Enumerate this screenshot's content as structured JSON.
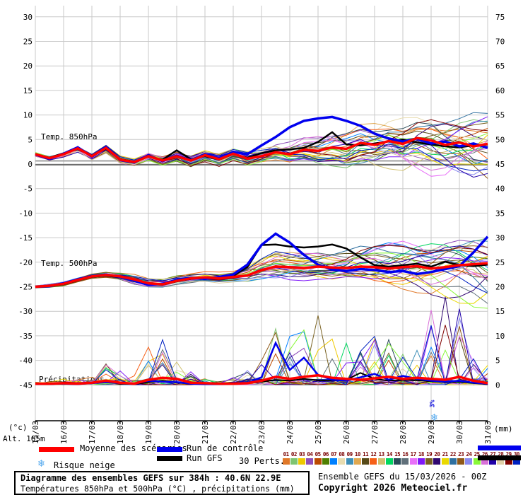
{
  "axes": {
    "left_unit": "(°c)",
    "right_unit": "(mm)",
    "alt_label": "Alt. 165m",
    "left_ticks": [
      30,
      25,
      20,
      15,
      10,
      5,
      0,
      -5,
      -10,
      -15,
      -20,
      -25,
      -30,
      -35,
      -40,
      -45
    ],
    "right_ticks": [
      75,
      70,
      65,
      60,
      55,
      50,
      45,
      40,
      35,
      30,
      25,
      20,
      15,
      10,
      5,
      0
    ],
    "date_labels": [
      "15/03",
      "16/03",
      "17/03",
      "18/03",
      "19/03",
      "20/03",
      "21/03",
      "22/03",
      "23/03",
      "24/03",
      "25/03",
      "26/03",
      "27/03",
      "28/03",
      "29/03",
      "30/03",
      "31/03"
    ]
  },
  "panels": {
    "t850_label": "Temp. 850hPa",
    "t500_label": "Temp. 500hPa",
    "precip_label": "Précipitations"
  },
  "legend": {
    "mean_label": "Moyenne des scénarios",
    "control_label": "Run de contrôle",
    "gfs_label": "Run GFS",
    "perts_label": "30 Perts.",
    "snow_label": "Risque neige",
    "snowflake_icon": "❄",
    "mean_color": "#FF0000",
    "control_color": "#0000EE",
    "gfs_color": "#000000",
    "pert_numbers": [
      "01",
      "02",
      "03",
      "04",
      "05",
      "06",
      "07",
      "08",
      "09",
      "10",
      "11",
      "12",
      "13",
      "14",
      "15",
      "16",
      "17",
      "18",
      "19",
      "20",
      "21",
      "22",
      "23",
      "24",
      "25",
      "26",
      "27",
      "28",
      "29",
      "30"
    ],
    "pert_colors": [
      "#E07828",
      "#7EC471",
      "#EFC900",
      "#8F4FB8",
      "#BB4A00",
      "#4F7F00",
      "#0080FF",
      "#E8DCB0",
      "#3E8FB8",
      "#E0A850",
      "#574A18",
      "#F66018",
      "#CFC070",
      "#00D660",
      "#2A4A58",
      "#60707A",
      "#E870F8",
      "#7F18F8",
      "#786020",
      "#300870",
      "#EAD900",
      "#2F70A0",
      "#8F5818",
      "#8A8AF0",
      "#88F838",
      "#D870D8",
      "#2000A8",
      "#E0D0A8",
      "#7F0000",
      "#0020C0"
    ]
  },
  "snow_annotation": {
    "icon": "❄",
    "label": "3%"
  },
  "footer": {
    "box_title": "Diagramme des ensembles GEFS sur 384h : 40.6N 22.9E",
    "box_subtitle": "Températures 850hPa et 500hPa (°C) , précipitations (mm)",
    "run_info": "Ensemble GEFS du 15/03/2026 - 00Z",
    "copyright": "Copyright 2026 Meteociel.fr"
  },
  "chart_data": {
    "type": "line",
    "title": "Diagramme des ensembles GEFS sur 384h : 40.6N 22.9E",
    "x_axis": "dates 15/03 to 31/03 (hours 0-384, GEFS run 15/03/2026 00Z)",
    "left_axis_range": [
      -45,
      30
    ],
    "right_axis_range": [
      0,
      75
    ],
    "grid": true,
    "members_count": 30,
    "x_hours": [
      0,
      12,
      24,
      36,
      48,
      60,
      72,
      84,
      96,
      108,
      120,
      132,
      144,
      156,
      168,
      180,
      192,
      204,
      216,
      228,
      240,
      252,
      264,
      276,
      288,
      300,
      312,
      324,
      336,
      348,
      360,
      372,
      384
    ],
    "t850": {
      "label": "Temp. 850hPa",
      "unit": "°C",
      "mean": [
        2.0,
        1.2,
        2.0,
        3.2,
        1.6,
        3.3,
        0.9,
        0.4,
        1.6,
        0.7,
        1.6,
        0.7,
        1.8,
        1.0,
        2.1,
        1.1,
        1.6,
        2.4,
        2.0,
        2.9,
        2.7,
        3.4,
        3.1,
        4.3,
        3.9,
        4.7,
        4.1,
        5.3,
        4.8,
        3.9,
        4.4,
        3.6,
        4.1
      ],
      "control": [
        2.0,
        1.1,
        2.1,
        3.4,
        1.5,
        3.5,
        0.8,
        0.3,
        1.8,
        0.6,
        1.7,
        0.8,
        2.0,
        1.2,
        2.5,
        2.0,
        3.8,
        5.5,
        7.5,
        8.8,
        9.3,
        9.6,
        8.8,
        7.8,
        6.2,
        5.2,
        4.6,
        5.2,
        4.2,
        4.6,
        3.6,
        4.2,
        3.3
      ],
      "gfs": [
        2.0,
        1.3,
        2.2,
        3.0,
        1.7,
        3.1,
        1.0,
        0.5,
        1.5,
        0.9,
        2.8,
        1.0,
        1.6,
        0.9,
        2.0,
        1.3,
        2.2,
        2.8,
        3.0,
        3.3,
        4.5,
        6.5,
        4.0,
        3.8,
        4.2,
        4.6,
        5.0,
        4.4,
        4.0,
        3.6,
        3.4,
        3.8,
        4.0
      ],
      "spread_low": [
        1.5,
        0.7,
        1.4,
        2.4,
        0.8,
        2.2,
        0.0,
        -0.6,
        0.4,
        -0.5,
        0.3,
        -0.8,
        0.3,
        -0.5,
        0.5,
        -0.8,
        -0.5,
        0.0,
        -0.5,
        0.0,
        -0.5,
        -0.5,
        -1.0,
        -1.0,
        -1.5,
        -1.5,
        -2.0,
        -2.0,
        -2.5,
        -3.0,
        -3.5,
        -4.0,
        -4.5
      ],
      "spread_high": [
        2.5,
        1.8,
        2.6,
        3.8,
        2.2,
        4.0,
        1.8,
        1.2,
        2.5,
        1.8,
        2.6,
        1.8,
        2.8,
        2.2,
        3.2,
        2.6,
        3.4,
        4.5,
        5.0,
        6.0,
        6.5,
        7.0,
        7.5,
        8.5,
        9.0,
        9.5,
        10.0,
        10.5,
        11.0,
        10.5,
        10.0,
        10.5,
        10.5
      ]
    },
    "t500": {
      "label": "Temp. 500hPa",
      "unit": "°C",
      "mean": [
        -25.0,
        -24.8,
        -24.4,
        -23.6,
        -22.9,
        -22.6,
        -22.9,
        -23.5,
        -24.3,
        -24.5,
        -23.8,
        -23.3,
        -23.1,
        -23.3,
        -23.0,
        -22.7,
        -21.6,
        -20.9,
        -21.0,
        -21.2,
        -20.9,
        -21.1,
        -21.2,
        -20.9,
        -21.0,
        -21.3,
        -21.0,
        -20.8,
        -21.3,
        -21.0,
        -20.6,
        -20.4,
        -20.2
      ],
      "control": [
        -25.0,
        -24.9,
        -24.3,
        -23.5,
        -22.8,
        -22.5,
        -23.0,
        -23.8,
        -24.6,
        -24.4,
        -23.6,
        -23.2,
        -23.4,
        -23.0,
        -22.5,
        -20.5,
        -16.5,
        -14.2,
        -16.0,
        -18.5,
        -20.5,
        -21.5,
        -21.8,
        -21.4,
        -21.6,
        -22.0,
        -21.8,
        -22.4,
        -22.0,
        -21.4,
        -20.8,
        -18.0,
        -14.8
      ],
      "gfs": [
        -25.0,
        -24.8,
        -24.5,
        -23.7,
        -23.0,
        -22.7,
        -23.1,
        -23.6,
        -24.4,
        -24.6,
        -23.9,
        -23.4,
        -23.0,
        -23.2,
        -22.8,
        -21.0,
        -16.5,
        -16.4,
        -16.8,
        -17.0,
        -16.8,
        -16.4,
        -17.2,
        -19.0,
        -20.6,
        -20.9,
        -20.6,
        -20.3,
        -20.9,
        -19.9,
        -20.6,
        -20.8,
        -20.5
      ],
      "spread_low": [
        -25.3,
        -25.1,
        -24.8,
        -24.0,
        -23.3,
        -23.2,
        -23.8,
        -25.0,
        -25.4,
        -25.2,
        -24.6,
        -24.2,
        -24.0,
        -24.3,
        -24.1,
        -24.0,
        -23.5,
        -23.5,
        -23.8,
        -24.0,
        -24.2,
        -24.5,
        -24.2,
        -24.5,
        -25.0,
        -25.5,
        -26.0,
        -26.5,
        -27.5,
        -28.0,
        -28.5,
        -29.5,
        -30.0
      ],
      "spread_high": [
        -24.7,
        -24.4,
        -24.0,
        -23.2,
        -22.4,
        -22.0,
        -22.2,
        -22.4,
        -23.0,
        -23.2,
        -22.6,
        -22.2,
        -21.8,
        -21.8,
        -21.4,
        -20.0,
        -18.5,
        -17.5,
        -18.0,
        -18.2,
        -18.0,
        -17.8,
        -17.5,
        -16.5,
        -16.0,
        -15.5,
        -15.0,
        -15.5,
        -16.0,
        -15.8,
        -15.5,
        -15.2,
        -15.0
      ]
    },
    "precip": {
      "label": "Précipitations",
      "unit": "mm",
      "mean": [
        0.2,
        0.2,
        0.3,
        0.2,
        0.4,
        0.8,
        0.4,
        0.2,
        1.0,
        1.4,
        1.2,
        0.4,
        0.3,
        0.2,
        0.2,
        0.3,
        0.8,
        1.6,
        1.2,
        1.6,
        1.9,
        1.4,
        1.2,
        1.0,
        1.3,
        1.6,
        1.2,
        1.4,
        1.2,
        1.0,
        1.6,
        0.8,
        0.3
      ],
      "control": [
        0.1,
        0.2,
        0.2,
        0.1,
        0.3,
        0.5,
        0.3,
        0.2,
        0.8,
        0.6,
        0.5,
        0.2,
        0.1,
        0.1,
        0.2,
        0.4,
        1.5,
        8.5,
        3.0,
        5.5,
        2.0,
        1.0,
        0.8,
        1.5,
        2.2,
        1.0,
        1.8,
        1.2,
        0.8,
        0.6,
        0.8,
        0.4,
        0.2
      ],
      "gfs": [
        0.1,
        0.1,
        0.2,
        0.2,
        0.3,
        0.6,
        0.2,
        0.1,
        0.5,
        0.8,
        0.4,
        0.2,
        0.1,
        0.1,
        0.2,
        0.3,
        0.6,
        1.0,
        0.8,
        1.2,
        0.9,
        0.8,
        1.0,
        2.4,
        1.2,
        0.8,
        1.0,
        0.9,
        0.7,
        0.5,
        0.6,
        0.3,
        0.1
      ],
      "member_max": [
        0.5,
        0.8,
        1.5,
        1.0,
        2.0,
        4.5,
        3.0,
        2.0,
        8.0,
        11.0,
        7.0,
        3.0,
        1.5,
        1.0,
        1.5,
        3.0,
        6.0,
        15.0,
        10.0,
        14.0,
        15.0,
        10.0,
        9.5,
        8.0,
        10.0,
        10.5,
        8.0,
        9.0,
        16.0,
        18.0,
        17.0,
        8.0,
        4.0
      ]
    }
  }
}
